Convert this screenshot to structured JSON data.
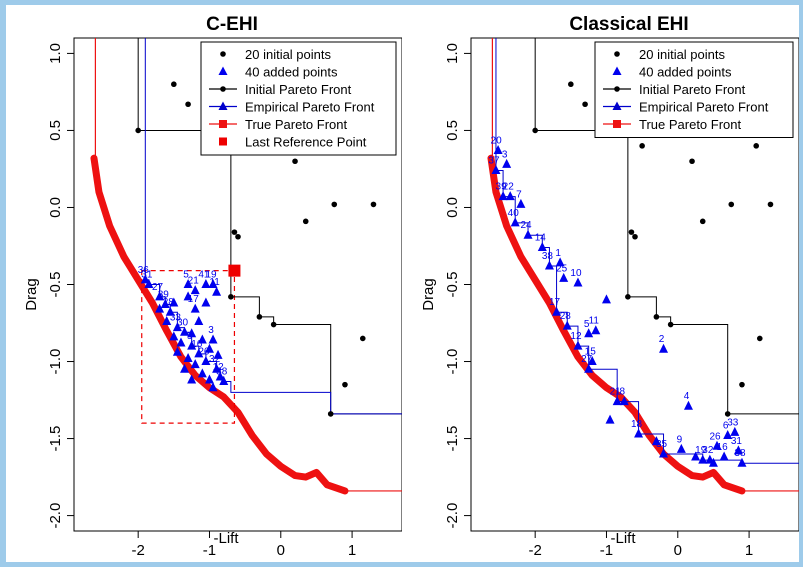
{
  "colors": {
    "initial": "#000000",
    "added": "#0000ee",
    "initial_front": "#000000",
    "empirical_front": "#0000cc",
    "true_front": "#ee1111",
    "ref_point": "#ee0000",
    "border": "#9ecbea"
  },
  "chart_data": [
    {
      "type": "scatter",
      "title": "C-EHI",
      "xlabel": "-Lift",
      "ylabel": "Drag",
      "xlim": [
        -2.9,
        1.7
      ],
      "ylim": [
        -2.1,
        1.1
      ],
      "xticks": [
        -2,
        -1,
        0,
        1
      ],
      "yticks": [
        -2.0,
        -1.5,
        -1.0,
        -0.5,
        0.0,
        0.5,
        1.0
      ],
      "xtick_labels": [
        "-2",
        "-1",
        "0",
        "1"
      ],
      "ytick_labels": [
        "-2.0",
        "-1.5",
        "-1.0",
        "-0.5",
        "0.0",
        "0.5",
        "1.0"
      ],
      "legend_position": "top-right",
      "legend": [
        {
          "label": "20 initial points",
          "kind": "point",
          "color": "#000000"
        },
        {
          "label": "40 added points",
          "kind": "triangle",
          "color": "#0000ee"
        },
        {
          "label": "Initial Pareto Front",
          "kind": "line-point",
          "color": "#000000"
        },
        {
          "label": "Empirical Pareto Front",
          "kind": "line-triangle",
          "color": "#0000cc"
        },
        {
          "label": "True Pareto Front",
          "kind": "line-square",
          "color": "#ee1111"
        },
        {
          "label": "Last Reference Point",
          "kind": "square",
          "color": "#ee0000"
        }
      ],
      "initial_points": [
        [
          -2.0,
          0.5
        ],
        [
          -1.3,
          0.67
        ],
        [
          -0.65,
          -0.16
        ],
        [
          -0.6,
          -0.19
        ],
        [
          -0.7,
          -0.58
        ],
        [
          -0.3,
          -0.71
        ],
        [
          -0.1,
          -0.76
        ],
        [
          0.35,
          -0.09
        ],
        [
          0.75,
          0.02
        ],
        [
          1.3,
          0.02
        ],
        [
          1.15,
          -0.85
        ],
        [
          0.9,
          -1.15
        ],
        [
          0.7,
          -1.34
        ],
        [
          -0.9,
          0.68
        ],
        [
          -0.6,
          0.6
        ],
        [
          -1.5,
          0.8
        ],
        [
          0.2,
          0.3
        ],
        [
          1.0,
          0.5
        ],
        [
          -0.2,
          0.4
        ],
        [
          0.5,
          0.75
        ]
      ],
      "initial_front": [
        [
          -2.0,
          1.15
        ],
        [
          -2.0,
          0.5
        ],
        [
          -0.7,
          0.5
        ],
        [
          -0.7,
          -0.58
        ],
        [
          -0.3,
          -0.58
        ],
        [
          -0.3,
          -0.71
        ],
        [
          -0.1,
          -0.71
        ],
        [
          -0.1,
          -0.76
        ],
        [
          0.7,
          -0.76
        ],
        [
          0.7,
          -1.34
        ],
        [
          1.7,
          -1.34
        ]
      ],
      "added_points": [
        {
          "x": -1.9,
          "y": -0.47,
          "label": "36"
        },
        {
          "x": -1.85,
          "y": -0.5,
          "label": "31"
        },
        {
          "x": -1.7,
          "y": -0.58,
          "label": "27"
        },
        {
          "x": -1.62,
          "y": -0.63,
          "label": "39"
        },
        {
          "x": -1.55,
          "y": -0.68,
          "label": "28"
        },
        {
          "x": -1.3,
          "y": -0.5,
          "label": "5"
        },
        {
          "x": -1.2,
          "y": -0.54,
          "label": "21"
        },
        {
          "x": -1.05,
          "y": -0.5,
          "label": "41"
        },
        {
          "x": -0.95,
          "y": -0.5,
          "label": "19"
        },
        {
          "x": -0.9,
          "y": -0.55,
          "label": "11"
        },
        {
          "x": -1.3,
          "y": -0.58
        },
        {
          "x": -1.2,
          "y": -0.66,
          "label": "17"
        },
        {
          "x": -1.45,
          "y": -0.78,
          "label": "33"
        },
        {
          "x": -1.35,
          "y": -0.81,
          "label": "30"
        },
        {
          "x": -0.95,
          "y": -0.86,
          "label": "3"
        },
        {
          "x": -1.25,
          "y": -0.9,
          "label": "9"
        },
        {
          "x": -1.15,
          "y": -0.95,
          "label": "16"
        },
        {
          "x": -1.05,
          "y": -1.0,
          "label": "26"
        },
        {
          "x": -0.9,
          "y": -1.05,
          "label": "32"
        },
        {
          "x": -0.85,
          "y": -1.1,
          "label": "12"
        },
        {
          "x": -0.8,
          "y": -1.13,
          "label": "38"
        },
        {
          "x": -1.4,
          "y": -0.88
        },
        {
          "x": -1.3,
          "y": -0.98
        },
        {
          "x": -1.2,
          "y": -1.02
        },
        {
          "x": -1.1,
          "y": -1.08
        },
        {
          "x": -1.0,
          "y": -1.12
        },
        {
          "x": -0.95,
          "y": -1.17
        },
        {
          "x": -1.5,
          "y": -0.84
        },
        {
          "x": -1.15,
          "y": -0.74
        },
        {
          "x": -1.05,
          "y": -0.62
        },
        {
          "x": -1.6,
          "y": -0.74
        },
        {
          "x": -1.35,
          "y": -1.05
        },
        {
          "x": -1.25,
          "y": -0.82
        },
        {
          "x": -1.45,
          "y": -0.94
        },
        {
          "x": -1.0,
          "y": -0.92
        },
        {
          "x": -1.7,
          "y": -0.66
        },
        {
          "x": -1.1,
          "y": -0.86
        },
        {
          "x": -0.88,
          "y": -0.96
        },
        {
          "x": -1.5,
          "y": -0.62
        },
        {
          "x": -1.25,
          "y": -1.12
        }
      ],
      "empirical_front": [
        [
          -1.9,
          1.15
        ],
        [
          -1.9,
          -0.47
        ],
        [
          -1.85,
          -0.47
        ],
        [
          -1.85,
          -0.5
        ],
        [
          -1.7,
          -0.5
        ],
        [
          -1.7,
          -0.58
        ],
        [
          -1.62,
          -0.58
        ],
        [
          -1.62,
          -0.63
        ],
        [
          -1.55,
          -0.63
        ],
        [
          -1.55,
          -0.68
        ],
        [
          -1.45,
          -0.68
        ],
        [
          -1.45,
          -0.78
        ],
        [
          -1.35,
          -0.78
        ],
        [
          -1.35,
          -0.81
        ],
        [
          -1.25,
          -0.81
        ],
        [
          -1.25,
          -0.9
        ],
        [
          -1.15,
          -0.9
        ],
        [
          -1.15,
          -0.95
        ],
        [
          -1.05,
          -0.95
        ],
        [
          -1.05,
          -1.0
        ],
        [
          -0.9,
          -1.0
        ],
        [
          -0.9,
          -1.05
        ],
        [
          -0.85,
          -1.05
        ],
        [
          -0.85,
          -1.1
        ],
        [
          -0.8,
          -1.1
        ],
        [
          -0.8,
          -1.13
        ],
        [
          -0.7,
          -1.13
        ],
        [
          -0.7,
          -1.2
        ],
        [
          0.7,
          -1.2
        ],
        [
          0.7,
          -1.34
        ],
        [
          1.7,
          -1.34
        ]
      ],
      "true_front": [
        [
          -2.62,
          0.32
        ],
        [
          -2.55,
          0.1
        ],
        [
          -2.4,
          -0.12
        ],
        [
          -2.2,
          -0.32
        ],
        [
          -2.0,
          -0.47
        ],
        [
          -1.8,
          -0.62
        ],
        [
          -1.6,
          -0.8
        ],
        [
          -1.4,
          -0.97
        ],
        [
          -1.2,
          -1.09
        ],
        [
          -1.0,
          -1.17
        ],
        [
          -0.8,
          -1.23
        ],
        [
          -0.6,
          -1.33
        ],
        [
          -0.4,
          -1.48
        ],
        [
          -0.2,
          -1.6
        ],
        [
          0.0,
          -1.68
        ],
        [
          0.2,
          -1.74
        ],
        [
          0.35,
          -1.75
        ],
        [
          0.5,
          -1.72
        ],
        [
          0.65,
          -1.8
        ],
        [
          0.9,
          -1.84
        ]
      ],
      "true_front_lines": [
        [
          [
            -2.6,
            1.15
          ],
          [
            -2.6,
            0.32
          ]
        ],
        [
          [
            0.9,
            -1.84
          ],
          [
            1.7,
            -1.84
          ]
        ]
      ],
      "reference_point": {
        "x": -0.65,
        "y": -0.41
      },
      "reference_box": {
        "x0": -1.95,
        "x1": -0.65,
        "y0": -1.4,
        "y1": -0.41
      }
    },
    {
      "type": "scatter",
      "title": "Classical EHI",
      "xlabel": "-Lift",
      "ylabel": "Drag",
      "xlim": [
        -2.9,
        1.7
      ],
      "ylim": [
        -2.1,
        1.1
      ],
      "xticks": [
        -2,
        -1,
        0,
        1
      ],
      "yticks": [
        -2.0,
        -1.5,
        -1.0,
        -0.5,
        0.0,
        0.5,
        1.0
      ],
      "xtick_labels": [
        "-2",
        "-1",
        "0",
        "1"
      ],
      "ytick_labels": [
        "-2.0",
        "-1.5",
        "-1.0",
        "-0.5",
        "0.0",
        "0.5",
        "1.0"
      ],
      "legend_position": "top-right",
      "legend": [
        {
          "label": "20 initial points",
          "kind": "point",
          "color": "#000000"
        },
        {
          "label": "40 added points",
          "kind": "triangle",
          "color": "#0000ee"
        },
        {
          "label": "Initial Pareto Front",
          "kind": "line-point",
          "color": "#000000"
        },
        {
          "label": "Empirical Pareto Front",
          "kind": "line-triangle",
          "color": "#0000cc"
        },
        {
          "label": "True Pareto Front",
          "kind": "line-square",
          "color": "#ee1111"
        }
      ],
      "initial_points": [
        [
          -2.0,
          0.5
        ],
        [
          -1.3,
          0.67
        ],
        [
          -0.65,
          -0.16
        ],
        [
          -0.6,
          -0.19
        ],
        [
          -0.7,
          -0.58
        ],
        [
          -0.3,
          -0.71
        ],
        [
          -0.1,
          -0.76
        ],
        [
          0.35,
          -0.09
        ],
        [
          0.75,
          0.02
        ],
        [
          1.3,
          0.02
        ],
        [
          1.15,
          -0.85
        ],
        [
          0.9,
          -1.15
        ],
        [
          0.7,
          -1.34
        ],
        [
          -0.5,
          0.4
        ],
        [
          1.1,
          0.4
        ],
        [
          -0.9,
          0.68
        ],
        [
          -1.5,
          0.8
        ],
        [
          0.2,
          0.3
        ],
        [
          1.0,
          0.6
        ],
        [
          0.5,
          0.75
        ]
      ],
      "initial_front": [
        [
          -2.0,
          1.15
        ],
        [
          -2.0,
          0.5
        ],
        [
          -0.7,
          0.5
        ],
        [
          -0.7,
          -0.58
        ],
        [
          -0.3,
          -0.58
        ],
        [
          -0.3,
          -0.71
        ],
        [
          -0.1,
          -0.71
        ],
        [
          -0.1,
          -0.76
        ],
        [
          0.7,
          -0.76
        ],
        [
          0.7,
          -1.34
        ],
        [
          1.7,
          -1.34
        ]
      ],
      "added_points": [
        {
          "x": -2.52,
          "y": 0.37,
          "label": "20"
        },
        {
          "x": -2.55,
          "y": 0.24,
          "label": "37"
        },
        {
          "x": -2.4,
          "y": 0.28,
          "label": "3"
        },
        {
          "x": -2.45,
          "y": 0.07,
          "label": "39"
        },
        {
          "x": -2.35,
          "y": 0.07,
          "label": "22"
        },
        {
          "x": -2.2,
          "y": 0.02,
          "label": "7"
        },
        {
          "x": -2.28,
          "y": -0.1,
          "label": "40"
        },
        {
          "x": -2.1,
          "y": -0.18,
          "label": "24"
        },
        {
          "x": -1.9,
          "y": -0.26,
          "label": "14"
        },
        {
          "x": -1.8,
          "y": -0.38,
          "label": "38"
        },
        {
          "x": -1.65,
          "y": -0.36,
          "label": "1"
        },
        {
          "x": -1.4,
          "y": -0.49,
          "label": "10"
        },
        {
          "x": -1.6,
          "y": -0.46,
          "label": "25"
        },
        {
          "x": -1.7,
          "y": -0.68,
          "label": "17"
        },
        {
          "x": -1.55,
          "y": -0.77,
          "label": "28"
        },
        {
          "x": -1.25,
          "y": -0.82,
          "label": "5"
        },
        {
          "x": -1.15,
          "y": -0.8,
          "label": "11"
        },
        {
          "x": -1.4,
          "y": -0.9,
          "label": "12"
        },
        {
          "x": -0.2,
          "y": -0.92,
          "label": "2"
        },
        {
          "x": -1.2,
          "y": -1.0,
          "label": "15"
        },
        {
          "x": -1.25,
          "y": -1.05,
          "label": "27"
        },
        {
          "x": -0.85,
          "y": -1.26,
          "label": "21"
        },
        {
          "x": -0.75,
          "y": -1.26,
          "label": "8"
        },
        {
          "x": 0.15,
          "y": -1.29,
          "label": "4"
        },
        {
          "x": -0.55,
          "y": -1.47,
          "label": "18"
        },
        {
          "x": -0.2,
          "y": -1.6,
          "label": "35"
        },
        {
          "x": 0.05,
          "y": -1.57,
          "label": "9"
        },
        {
          "x": 0.35,
          "y": -1.64,
          "label": "19"
        },
        {
          "x": 0.45,
          "y": -1.64,
          "label": "32"
        },
        {
          "x": 0.55,
          "y": -1.55,
          "label": "26"
        },
        {
          "x": 0.7,
          "y": -1.48,
          "label": "6"
        },
        {
          "x": 0.8,
          "y": -1.46,
          "label": "33"
        },
        {
          "x": 0.85,
          "y": -1.58,
          "label": "31"
        },
        {
          "x": 0.9,
          "y": -1.66,
          "label": "38"
        },
        {
          "x": 0.65,
          "y": -1.62,
          "label": "16"
        },
        {
          "x": -1.0,
          "y": -0.6
        },
        {
          "x": -0.95,
          "y": -1.38
        },
        {
          "x": -0.3,
          "y": -1.52
        },
        {
          "x": 0.25,
          "y": -1.62
        },
        {
          "x": 0.5,
          "y": -1.66
        }
      ],
      "empirical_front": [
        [
          -2.55,
          1.15
        ],
        [
          -2.55,
          0.24
        ],
        [
          -2.45,
          0.24
        ],
        [
          -2.45,
          0.07
        ],
        [
          -2.28,
          0.07
        ],
        [
          -2.28,
          -0.1
        ],
        [
          -2.1,
          -0.1
        ],
        [
          -2.1,
          -0.18
        ],
        [
          -1.9,
          -0.18
        ],
        [
          -1.9,
          -0.26
        ],
        [
          -1.8,
          -0.26
        ],
        [
          -1.8,
          -0.38
        ],
        [
          -1.7,
          -0.38
        ],
        [
          -1.7,
          -0.68
        ],
        [
          -1.55,
          -0.68
        ],
        [
          -1.55,
          -0.77
        ],
        [
          -1.4,
          -0.77
        ],
        [
          -1.4,
          -0.9
        ],
        [
          -1.25,
          -0.9
        ],
        [
          -1.25,
          -1.05
        ],
        [
          -0.85,
          -1.05
        ],
        [
          -0.85,
          -1.26
        ],
        [
          -0.55,
          -1.26
        ],
        [
          -0.55,
          -1.47
        ],
        [
          -0.2,
          -1.47
        ],
        [
          -0.2,
          -1.6
        ],
        [
          0.35,
          -1.6
        ],
        [
          0.35,
          -1.64
        ],
        [
          0.9,
          -1.64
        ],
        [
          0.9,
          -1.66
        ],
        [
          1.7,
          -1.66
        ]
      ],
      "true_front": [
        [
          -2.62,
          0.32
        ],
        [
          -2.55,
          0.1
        ],
        [
          -2.4,
          -0.12
        ],
        [
          -2.2,
          -0.32
        ],
        [
          -2.0,
          -0.47
        ],
        [
          -1.8,
          -0.62
        ],
        [
          -1.6,
          -0.8
        ],
        [
          -1.4,
          -0.97
        ],
        [
          -1.2,
          -1.09
        ],
        [
          -1.0,
          -1.17
        ],
        [
          -0.8,
          -1.23
        ],
        [
          -0.6,
          -1.33
        ],
        [
          -0.4,
          -1.48
        ],
        [
          -0.2,
          -1.6
        ],
        [
          0.0,
          -1.68
        ],
        [
          0.2,
          -1.74
        ],
        [
          0.35,
          -1.75
        ],
        [
          0.5,
          -1.72
        ],
        [
          0.65,
          -1.8
        ],
        [
          0.9,
          -1.84
        ]
      ],
      "true_front_lines": [
        [
          [
            -2.6,
            1.15
          ],
          [
            -2.6,
            0.32
          ]
        ],
        [
          [
            0.9,
            -1.84
          ],
          [
            1.7,
            -1.84
          ]
        ]
      ]
    }
  ]
}
